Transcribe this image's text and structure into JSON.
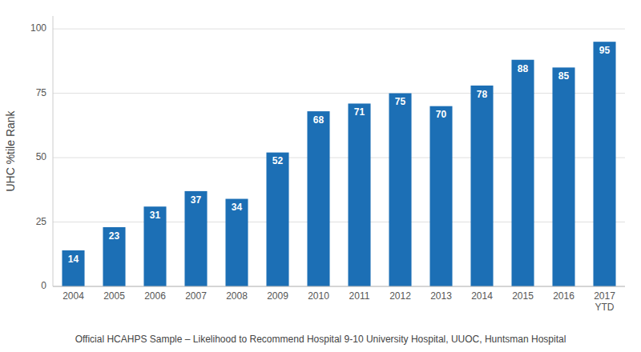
{
  "chart_data": {
    "type": "bar",
    "categories": [
      "2004",
      "2005",
      "2006",
      "2007",
      "2008",
      "2009",
      "2010",
      "2011",
      "2012",
      "2013",
      "2014",
      "2015",
      "2016",
      "2017\nYTD"
    ],
    "values": [
      14,
      23,
      31,
      37,
      34,
      52,
      68,
      71,
      75,
      70,
      78,
      88,
      85,
      95
    ],
    "color": "#1C6FB5",
    "ylabel": "UHC %tile Rank",
    "caption": "Official HCAHPS Sample – Likelihood to Recommend Hospital 9-10  University Hospital, UUOC, Huntsman Hospital",
    "ylim": [
      0,
      105
    ],
    "yticks": [
      0,
      25,
      50,
      75,
      100
    ],
    "grid": true,
    "data_labels": true
  }
}
